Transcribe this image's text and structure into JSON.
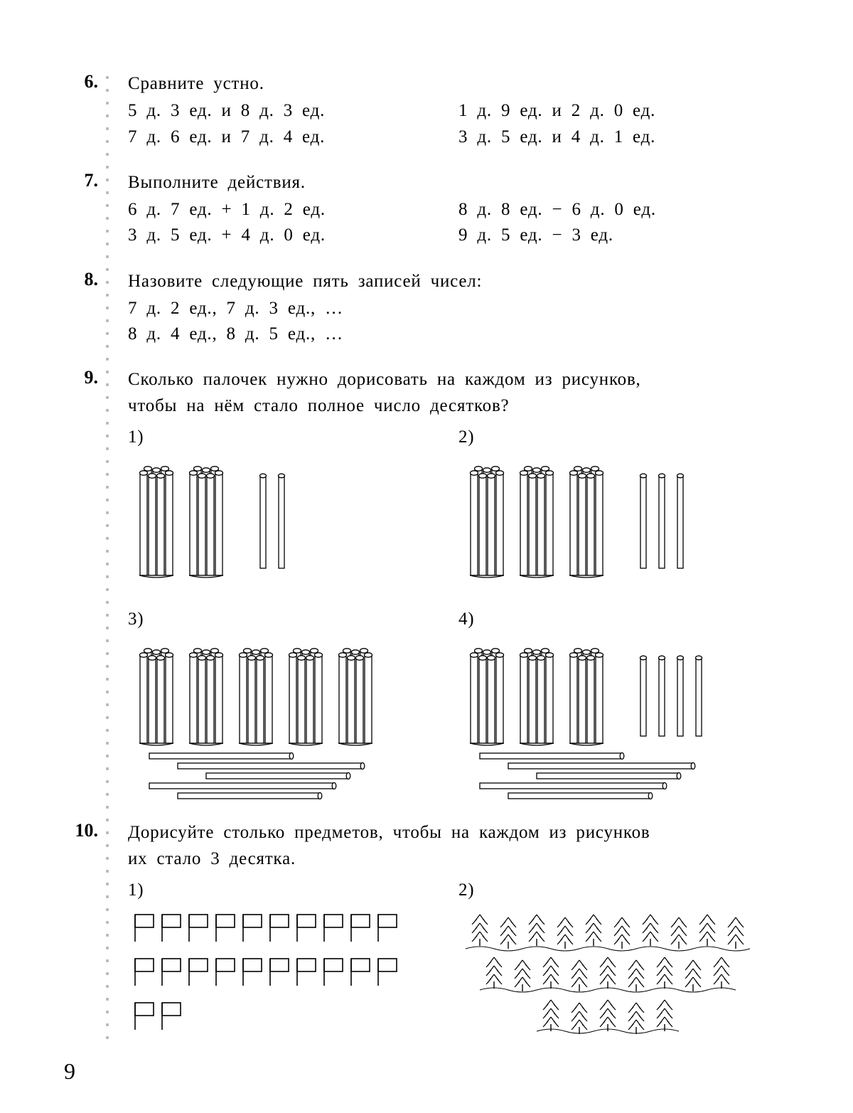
{
  "page_number": "9",
  "ex6": {
    "num": "6.",
    "title": "Сравните устно.",
    "left": [
      "5 д. 3 ед. и 8 д. 3 ед.",
      "7 д. 6 ед. и 7 д. 4 ед."
    ],
    "right": [
      "1 д. 9 ед. и 2 д. 0 ед.",
      "3 д. 5 ед. и 4 д. 1 ед."
    ]
  },
  "ex7": {
    "num": "7.",
    "title": "Выполните действия.",
    "left": [
      "6 д. 7 ед. + 1 д. 2 ед.",
      "3 д. 5 ед. + 4 д. 0 ед."
    ],
    "right": [
      "8 д. 8 ед. − 6 д. 0 ед.",
      "9 д. 5 ед. − 3 ед."
    ]
  },
  "ex8": {
    "num": "8.",
    "title": "Назовите следующие пять записей чисел:",
    "lines": [
      "7 д. 2 ед., 7 д. 3 ед., …",
      "8 д. 4 ед., 8 д. 5 ед., …"
    ]
  },
  "ex9": {
    "num": "9.",
    "title1": "Сколько палочек нужно дорисовать на каждом из рисунков,",
    "title2": "чтобы на нём стало полное число десятков?",
    "labels": [
      "1)",
      "2)",
      "3)",
      "4)"
    ],
    "figures": [
      {
        "bundles": 2,
        "vsticks": 2,
        "hsticks": 0
      },
      {
        "bundles": 3,
        "vsticks": 3,
        "hsticks": 0
      },
      {
        "bundles": 5,
        "vsticks": 0,
        "hsticks": 5
      },
      {
        "bundles": 3,
        "vsticks": 4,
        "hsticks": 5
      }
    ],
    "colors": {
      "stroke": "#000000",
      "fill": "#ffffff"
    }
  },
  "ex10": {
    "num": "10.",
    "title1": "Дорисуйте столько предметов, чтобы на каждом из рисунков",
    "title2": "их стало 3 десятка.",
    "labels": [
      "1)",
      "2)"
    ],
    "flags_rows": [
      10,
      10,
      2
    ],
    "trees_rows": [
      10,
      9,
      5
    ]
  }
}
